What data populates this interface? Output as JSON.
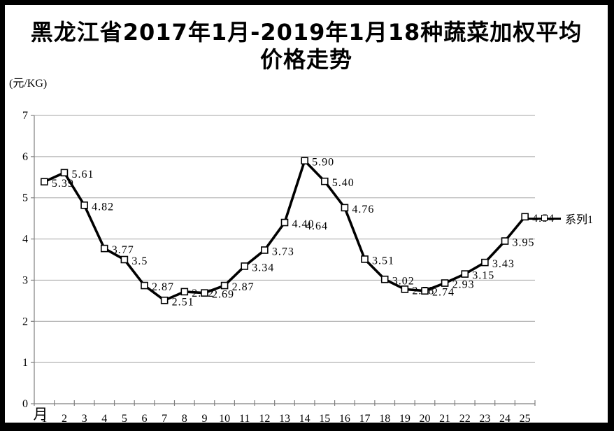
{
  "window": {
    "frame_color": "#000000",
    "canvas_color": "#ffffff"
  },
  "title": {
    "line1": "黑龙江省2017年1月-2019年1月18种蔬菜加权平均",
    "line2": "价格走势"
  },
  "axis_unit_label": "(元/KG)",
  "x_axis_name": "月",
  "legend": {
    "label": "系列1"
  },
  "chart_data": {
    "type": "line",
    "title": "黑龙江省2017年1月-2019年1月18种蔬菜加权平均价格走势",
    "ylabel": "(元/KG)",
    "xlabel": "月",
    "categories": [
      1,
      2,
      3,
      4,
      5,
      6,
      7,
      8,
      9,
      10,
      11,
      12,
      13,
      14,
      15,
      16,
      17,
      18,
      19,
      20,
      21,
      22,
      23,
      24,
      25
    ],
    "series": [
      {
        "name": "系列1",
        "values": [
          5.39,
          5.61,
          4.82,
          3.77,
          3.5,
          2.87,
          2.51,
          2.72,
          2.69,
          2.87,
          3.34,
          3.73,
          4.4,
          5.9,
          5.4,
          4.76,
          3.51,
          3.02,
          2.78,
          2.74,
          2.93,
          3.15,
          3.43,
          3.95,
          4.54
        ],
        "point_labels": [
          "5.39",
          "5.61",
          "4.82",
          "3.77",
          "3.5",
          "2.87",
          "2.51",
          "2.72",
          "2.69",
          "2.87",
          "3.34",
          "3.73",
          "4.40",
          "5.90",
          "5.40",
          "4.76",
          "3.51",
          "3.02",
          "2.78",
          "2.74",
          "2.93",
          "3.15",
          "3.43",
          "3.95",
          "4.54"
        ]
      }
    ],
    "extra_labels": [
      {
        "text": "4.64",
        "at_category": 13,
        "dx": 30,
        "dy": 10
      }
    ],
    "ylim": [
      0,
      7
    ],
    "yticks": [
      0,
      1,
      2,
      3,
      4,
      5,
      6,
      7
    ],
    "grid": true,
    "legend_position": "right",
    "line_color": "#000000",
    "marker_style": "open-square",
    "grid_color": "#a3a3a3",
    "axis_color": "#808080"
  }
}
